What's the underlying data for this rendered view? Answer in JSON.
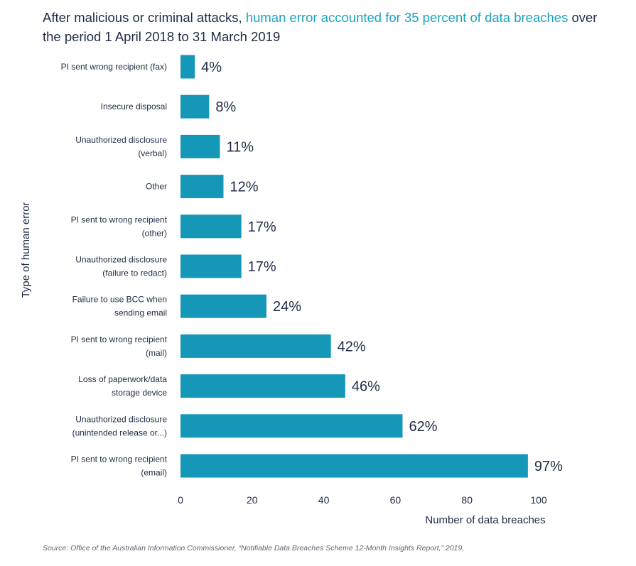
{
  "title": {
    "part1": "After malicious or criminal attacks, ",
    "highlight": "human error accounted for 35 percent of data breaches",
    "part2": " over the period 1 April 2018 to 31 March 2019"
  },
  "source": "Source: Office of the Australian Information Commissioner, “Notifiable Data Breaches Scheme 12-Month Insights Report,” 2019.",
  "colors": {
    "bar": "#1597b8",
    "highlight": "#1aa3c2",
    "text": "#1f2a44"
  },
  "chart_data": {
    "type": "bar",
    "orientation": "horizontal",
    "ylabel": "Type of  human error",
    "xlabel": "Number of data breaches",
    "xlim": [
      0,
      100
    ],
    "x_ticks": [
      0,
      20,
      40,
      60,
      80,
      100
    ],
    "grid": false,
    "categories": [
      [
        "PI sent wrong recipient (fax)"
      ],
      [
        "Insecure disposal"
      ],
      [
        "Unauthorized disclosure",
        "(verbal)"
      ],
      [
        "Other"
      ],
      [
        "PI sent to wrong recipient",
        "(other)"
      ],
      [
        "Unauthorized disclosure",
        "(failure to redact)"
      ],
      [
        "Failure to use BCC when",
        "sending email"
      ],
      [
        "PI sent to wrong recipient",
        "(mail)"
      ],
      [
        "Loss of paperwork/data",
        "storage device"
      ],
      [
        "Unauthorized disclosure",
        "(unintended release or...)"
      ],
      [
        "PI sent to wrong recipient",
        "(email)"
      ]
    ],
    "values": [
      4,
      8,
      11,
      12,
      17,
      17,
      24,
      42,
      46,
      62,
      97
    ],
    "data_labels": [
      "4%",
      "8%",
      "11%",
      "12%",
      "17%",
      "17%",
      "24%",
      "42%",
      "46%",
      "62%",
      "97%"
    ]
  }
}
